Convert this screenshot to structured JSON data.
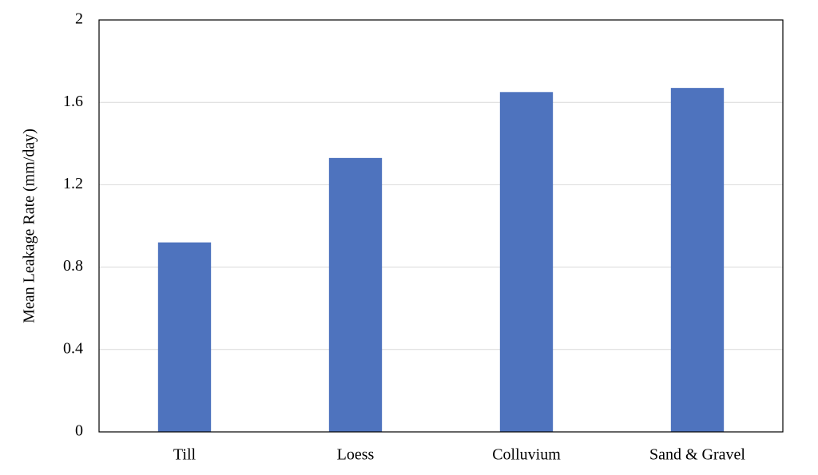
{
  "chart_data": {
    "type": "bar",
    "ylabel": "Mean Leakage Rate (mm/day)",
    "categories": [
      "Till",
      "Loess",
      "Colluvium",
      "Sand & Gravel"
    ],
    "values": [
      0.92,
      1.33,
      1.65,
      1.67
    ],
    "color": "#4e73be",
    "ylim": [
      0,
      2
    ],
    "yticks": [
      0,
      0.4,
      0.8,
      1.2,
      1.6,
      2
    ],
    "grid": true
  }
}
